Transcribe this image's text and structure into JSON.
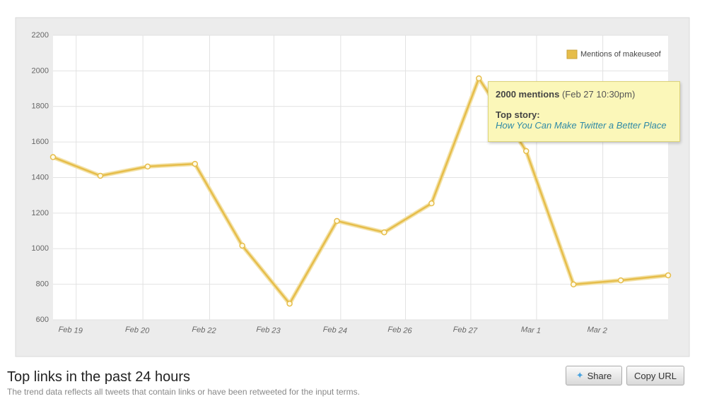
{
  "chart_data": {
    "type": "line",
    "x": [
      0,
      1,
      2,
      3,
      4,
      5,
      6,
      7,
      8,
      9,
      10,
      11,
      12,
      13
    ],
    "series": [
      {
        "name": "Mentions of makeuseof",
        "color": "#e6bd4a",
        "values": [
          1515,
          1410,
          1462,
          1477,
          1017,
          691,
          1156,
          1092,
          1255,
          1958,
          1549,
          799,
          822,
          850
        ]
      }
    ],
    "xlim": [
      0,
      13
    ],
    "xticks": [
      {
        "value": 0.37,
        "label": "Feb 19"
      },
      {
        "value": 1.78,
        "label": "Feb 20"
      },
      {
        "value": 3.19,
        "label": "Feb 22"
      },
      {
        "value": 4.55,
        "label": "Feb 23"
      },
      {
        "value": 5.96,
        "label": "Feb 24"
      },
      {
        "value": 7.33,
        "label": "Feb 26"
      },
      {
        "value": 8.71,
        "label": "Feb 27"
      },
      {
        "value": 10.1,
        "label": "Mar 1"
      },
      {
        "value": 11.5,
        "label": "Mar 2"
      }
    ],
    "ylim": [
      600,
      2200
    ],
    "yticks": [
      600,
      800,
      1000,
      1200,
      1400,
      1600,
      1800,
      2000,
      2200
    ],
    "grid": true,
    "legend": "top-right"
  },
  "tooltip": {
    "title": "2000 mentions",
    "time": "(Feb 27 10:30pm)",
    "label": "Top story:",
    "link": "How You Can Make Twitter a Better Place"
  },
  "footer": {
    "heading": "Top links in the past 24 hours",
    "note": "The trend data reflects all tweets that contain links or have been retweeted for the input terms."
  },
  "buttons": {
    "share": "Share",
    "copy": "Copy URL"
  }
}
